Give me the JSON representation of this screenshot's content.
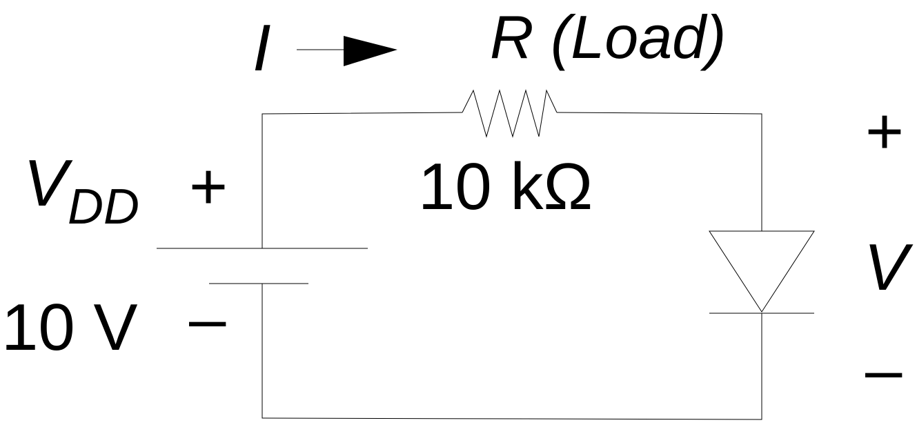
{
  "labels": {
    "current": "I",
    "resistor_name": "R (Load)",
    "resistor_value": "10 kΩ",
    "source_symbol": "V",
    "source_subscript": "DD",
    "source_value": "10 V",
    "source_plus": "+",
    "source_minus": "–",
    "diode_voltage": "V",
    "diode_plus": "+",
    "diode_minus": "–"
  },
  "colors": {
    "ink": "#000000",
    "background": "#ffffff"
  }
}
